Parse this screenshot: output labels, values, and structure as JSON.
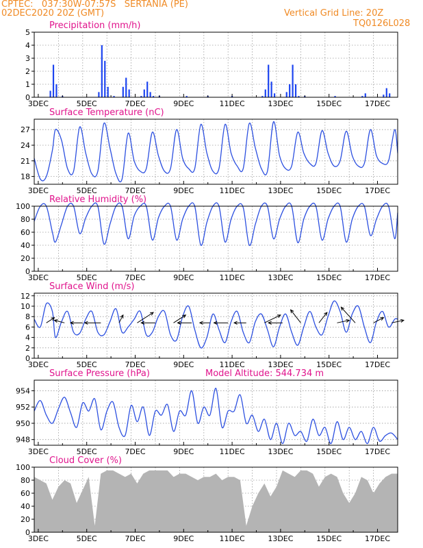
{
  "header": {
    "line1_left": "CPTEC:   037:30W-07:57S   SERTANIA (PE)",
    "line2_left": "02DEC2020 20Z (GMT)",
    "line1_right": "Vertical Grid Line: 20Z",
    "line2_right": "TQ0126L028"
  },
  "colors": {
    "header": "#f08a24",
    "title": "#e0138c",
    "series_line": "#2b4fe0",
    "precip_bar": "#1c44f0",
    "cloud_fill": "#b4b4b4",
    "arrow": "#000000"
  },
  "xaxis": {
    "start": "02DEC2020 20Z",
    "end": "17DEC2020 20Z",
    "tick_labels": [
      "3DEC",
      "5DEC",
      "7DEC",
      "9DEC",
      "11DEC",
      "13DEC",
      "15DEC",
      "17DEC"
    ],
    "tick_days": [
      3,
      5,
      7,
      9,
      11,
      13,
      15,
      17
    ]
  },
  "chart_data": [
    {
      "type": "bar",
      "title": "Precipitation (mm/h)",
      "ylim": [
        0,
        5
      ],
      "yticks": [
        0,
        1,
        2,
        3,
        4,
        5
      ],
      "grid": true,
      "x": [
        "03DEC2020 12Z",
        "03DEC2020 15Z",
        "03DEC2020 18Z",
        "04DEC2020 00Z",
        "05DEC2020 12Z",
        "05DEC2020 15Z",
        "05DEC2020 18Z",
        "05DEC2020 21Z",
        "06DEC2020 03Z",
        "06DEC2020 12Z",
        "06DEC2020 15Z",
        "06DEC2020 18Z",
        "07DEC2020 06Z",
        "07DEC2020 09Z",
        "07DEC2020 12Z",
        "07DEC2020 15Z",
        "07DEC2020 18Z",
        "08DEC2020 00Z",
        "09DEC2020 03Z",
        "10DEC2020 00Z",
        "11DEC2020 00Z",
        "12DEC2020 06Z",
        "12DEC2020 09Z",
        "12DEC2020 12Z",
        "12DEC2020 15Z",
        "12DEC2020 18Z",
        "13DEC2020 06Z",
        "13DEC2020 09Z",
        "13DEC2020 12Z",
        "13DEC2020 15Z",
        "13DEC2020 18Z",
        "14DEC2020 00Z",
        "15DEC2020 06Z",
        "16DEC2020 09Z",
        "16DEC2020 12Z",
        "17DEC2020 06Z",
        "17DEC2020 09Z",
        "17DEC2020 12Z"
      ],
      "values": [
        0.5,
        2.5,
        1.0,
        0.1,
        0.4,
        4.0,
        2.8,
        0.8,
        0.1,
        0.8,
        1.5,
        0.6,
        0.1,
        0.6,
        1.2,
        0.4,
        0.1,
        0.1,
        0.1,
        0.1,
        0.1,
        0.1,
        0.6,
        2.5,
        1.2,
        0.3,
        0.4,
        1.0,
        2.5,
        1.0,
        0.1,
        0.1,
        0.1,
        0.1,
        0.3,
        0.2,
        0.7,
        0.3
      ]
    },
    {
      "type": "line",
      "title": "Surface Temperature (nC)",
      "ylim": [
        16.5,
        29
      ],
      "yticks": [
        18,
        21,
        24,
        27
      ],
      "grid": true,
      "series": [
        {
          "x": [
            "02DEC2020 20Z",
            "03DEC2020 02Z",
            "03DEC2020 08Z",
            "03DEC2020 14Z",
            "03DEC2020 17Z",
            "03DEC2020 23Z",
            "04DEC2020 05Z",
            "04DEC2020 11Z",
            "04DEC2020 17Z",
            "04DEC2020 23Z",
            "05DEC2020 05Z",
            "05DEC2020 11Z",
            "05DEC2020 17Z",
            "05DEC2020 23Z",
            "06DEC2020 05Z",
            "06DEC2020 11Z",
            "06DEC2020 17Z",
            "06DEC2020 23Z",
            "07DEC2020 05Z",
            "07DEC2020 11Z",
            "07DEC2020 17Z",
            "07DEC2020 23Z",
            "08DEC2020 05Z",
            "08DEC2020 11Z",
            "08DEC2020 17Z",
            "08DEC2020 23Z",
            "09DEC2020 05Z",
            "09DEC2020 11Z",
            "09DEC2020 17Z",
            "09DEC2020 23Z",
            "10DEC2020 05Z",
            "10DEC2020 11Z",
            "10DEC2020 17Z",
            "10DEC2020 23Z",
            "11DEC2020 05Z",
            "11DEC2020 11Z",
            "11DEC2020 17Z",
            "11DEC2020 23Z",
            "12DEC2020 05Z",
            "12DEC2020 11Z",
            "12DEC2020 17Z",
            "12DEC2020 23Z",
            "13DEC2020 05Z",
            "13DEC2020 11Z",
            "13DEC2020 17Z",
            "13DEC2020 23Z",
            "14DEC2020 05Z",
            "14DEC2020 11Z",
            "14DEC2020 17Z",
            "14DEC2020 23Z",
            "15DEC2020 05Z",
            "15DEC2020 11Z",
            "15DEC2020 17Z",
            "15DEC2020 23Z",
            "16DEC2020 05Z",
            "16DEC2020 11Z",
            "16DEC2020 17Z",
            "16DEC2020 23Z",
            "17DEC2020 05Z",
            "17DEC2020 11Z",
            "17DEC2020 17Z",
            "17DEC2020 20Z"
          ],
          "values": [
            21.5,
            17.5,
            18.0,
            23.0,
            27.0,
            25.0,
            19.5,
            19.0,
            27.5,
            22.5,
            18.5,
            19.0,
            28.2,
            23.5,
            18.5,
            17.5,
            26.3,
            21.0,
            19.0,
            19.5,
            26.5,
            22.0,
            19.0,
            19.5,
            27.0,
            21.5,
            19.5,
            19.5,
            28.0,
            22.5,
            19.0,
            19.5,
            28.0,
            22.5,
            20.0,
            19.5,
            28.2,
            23.5,
            19.5,
            19.0,
            28.5,
            22.0,
            19.5,
            20.0,
            26.5,
            22.5,
            20.5,
            20.5,
            26.8,
            22.5,
            20.0,
            21.0,
            26.7,
            22.0,
            20.0,
            20.5,
            27.0,
            22.0,
            20.5,
            21.0,
            27.0,
            22.5
          ]
        }
      ]
    },
    {
      "type": "line",
      "title": "Relative Humidity (%)",
      "ylim": [
        0,
        100
      ],
      "yticks": [
        0,
        20,
        40,
        60,
        80,
        100
      ],
      "grid": true,
      "series": [
        {
          "x": [
            "02DEC2020 20Z",
            "03DEC2020 02Z",
            "03DEC2020 08Z",
            "03DEC2020 14Z",
            "03DEC2020 17Z",
            "03DEC2020 23Z",
            "04DEC2020 05Z",
            "04DEC2020 11Z",
            "04DEC2020 17Z",
            "04DEC2020 23Z",
            "05DEC2020 05Z",
            "05DEC2020 11Z",
            "05DEC2020 17Z",
            "05DEC2020 23Z",
            "06DEC2020 05Z",
            "06DEC2020 11Z",
            "06DEC2020 17Z",
            "06DEC2020 23Z",
            "07DEC2020 05Z",
            "07DEC2020 11Z",
            "07DEC2020 17Z",
            "07DEC2020 23Z",
            "08DEC2020 05Z",
            "08DEC2020 11Z",
            "08DEC2020 17Z",
            "08DEC2020 23Z",
            "09DEC2020 05Z",
            "09DEC2020 11Z",
            "09DEC2020 17Z",
            "09DEC2020 23Z",
            "10DEC2020 05Z",
            "10DEC2020 11Z",
            "10DEC2020 17Z",
            "10DEC2020 23Z",
            "11DEC2020 05Z",
            "11DEC2020 11Z",
            "11DEC2020 17Z",
            "11DEC2020 23Z",
            "12DEC2020 05Z",
            "12DEC2020 11Z",
            "12DEC2020 17Z",
            "12DEC2020 23Z",
            "13DEC2020 05Z",
            "13DEC2020 11Z",
            "13DEC2020 17Z",
            "13DEC2020 23Z",
            "14DEC2020 05Z",
            "14DEC2020 11Z",
            "14DEC2020 17Z",
            "14DEC2020 23Z",
            "15DEC2020 05Z",
            "15DEC2020 11Z",
            "15DEC2020 17Z",
            "15DEC2020 23Z",
            "16DEC2020 05Z",
            "16DEC2020 11Z",
            "16DEC2020 17Z",
            "16DEC2020 23Z",
            "17DEC2020 05Z",
            "17DEC2020 11Z",
            "17DEC2020 17Z",
            "17DEC2020 20Z"
          ],
          "values": [
            77,
            100,
            100,
            60,
            45,
            72,
            100,
            100,
            58,
            82,
            100,
            100,
            42,
            72,
            100,
            100,
            50,
            85,
            100,
            100,
            48,
            82,
            100,
            100,
            48,
            80,
            100,
            100,
            40,
            75,
            100,
            100,
            45,
            80,
            100,
            98,
            40,
            72,
            100,
            100,
            50,
            80,
            100,
            100,
            44,
            80,
            100,
            100,
            48,
            80,
            100,
            100,
            45,
            80,
            100,
            100,
            55,
            80,
            100,
            100,
            50,
            90
          ]
        }
      ]
    },
    {
      "type": "line",
      "title": "Surface Wind (m/s)",
      "ylim": [
        0,
        12.5
      ],
      "yticks": [
        0,
        2,
        4,
        6,
        8,
        10,
        12
      ],
      "grid": true,
      "series": [
        {
          "x": [
            "02DEC2020 20Z",
            "03DEC2020 02Z",
            "03DEC2020 08Z",
            "03DEC2020 14Z",
            "03DEC2020 17Z",
            "03DEC2020 23Z",
            "04DEC2020 05Z",
            "04DEC2020 11Z",
            "04DEC2020 17Z",
            "04DEC2020 23Z",
            "05DEC2020 05Z",
            "05DEC2020 11Z",
            "05DEC2020 17Z",
            "05DEC2020 23Z",
            "06DEC2020 05Z",
            "06DEC2020 11Z",
            "06DEC2020 17Z",
            "06DEC2020 23Z",
            "07DEC2020 05Z",
            "07DEC2020 11Z",
            "07DEC2020 17Z",
            "07DEC2020 23Z",
            "08DEC2020 05Z",
            "08DEC2020 11Z",
            "08DEC2020 17Z",
            "08DEC2020 23Z",
            "09DEC2020 05Z",
            "09DEC2020 11Z",
            "09DEC2020 17Z",
            "09DEC2020 23Z",
            "10DEC2020 05Z",
            "10DEC2020 11Z",
            "10DEC2020 17Z",
            "10DEC2020 23Z",
            "11DEC2020 05Z",
            "11DEC2020 11Z",
            "11DEC2020 17Z",
            "11DEC2020 23Z",
            "12DEC2020 05Z",
            "12DEC2020 11Z",
            "12DEC2020 17Z",
            "12DEC2020 23Z",
            "13DEC2020 05Z",
            "13DEC2020 11Z",
            "13DEC2020 17Z",
            "13DEC2020 23Z",
            "14DEC2020 05Z",
            "14DEC2020 11Z",
            "14DEC2020 17Z",
            "14DEC2020 23Z",
            "15DEC2020 05Z",
            "15DEC2020 11Z",
            "15DEC2020 17Z",
            "15DEC2020 23Z",
            "16DEC2020 05Z",
            "16DEC2020 11Z",
            "16DEC2020 17Z",
            "16DEC2020 23Z",
            "17DEC2020 05Z",
            "17DEC2020 11Z",
            "17DEC2020 17Z",
            "17DEC2020 20Z"
          ],
          "values": [
            7.5,
            6.0,
            10.5,
            9.0,
            4.0,
            7.0,
            9.0,
            5.0,
            4.8,
            7.5,
            9.0,
            5.0,
            4.5,
            7.0,
            9.5,
            5.0,
            6.0,
            7.5,
            9.0,
            4.5,
            5.0,
            8.0,
            9.0,
            4.5,
            3.5,
            8.0,
            10.0,
            5.5,
            2.0,
            4.0,
            8.5,
            5.5,
            3.0,
            7.0,
            9.0,
            5.0,
            3.0,
            7.0,
            8.5,
            5.5,
            2.2,
            6.0,
            8.5,
            5.0,
            2.5,
            6.0,
            9.0,
            6.0,
            4.5,
            8.0,
            11.0,
            9.0,
            5.0,
            8.5,
            10.0,
            6.0,
            3.0,
            7.0,
            9.0,
            6.0,
            7.5,
            7.5
          ]
        }
      ],
      "wind_arrows": {
        "x": [
          "03DEC2020 08Z",
          "04DEC2020 02Z",
          "04DEC2020 20Z",
          "05DEC2020 14Z",
          "06DEC2020 08Z",
          "07DEC2020 02Z",
          "07DEC2020 20Z",
          "08DEC2020 14Z",
          "09DEC2020 08Z",
          "10DEC2020 02Z",
          "10DEC2020 20Z",
          "11DEC2020 14Z",
          "12DEC2020 08Z",
          "13DEC2020 02Z",
          "13DEC2020 20Z",
          "14DEC2020 14Z",
          "15DEC2020 08Z",
          "16DEC2020 02Z",
          "16DEC2020 20Z",
          "17DEC2020 14Z"
        ],
        "to_x_hours": [
          8,
          -10,
          -12,
          -16,
          4,
          16,
          -14,
          12,
          -14,
          -10,
          -14,
          -12,
          16,
          -14,
          -10,
          8,
          12,
          -14,
          10,
          12
        ],
        "to_y": [
          1.0,
          0.5,
          0.0,
          0.0,
          1.5,
          2.0,
          0.0,
          1.5,
          0.0,
          0.0,
          0.0,
          0.0,
          1.5,
          0.0,
          2.5,
          2.0,
          0.5,
          3.0,
          1.0,
          0.5
        ]
      }
    },
    {
      "type": "line",
      "title": "Surface Pressure (hPa)",
      "annotation": "Model Altitude: 544.734 m",
      "ylim": [
        947.3,
        955.3
      ],
      "yticks": [
        948,
        950,
        952,
        954
      ],
      "grid": true,
      "series": [
        {
          "x": [
            "02DEC2020 20Z",
            "03DEC2020 02Z",
            "03DEC2020 08Z",
            "03DEC2020 14Z",
            "03DEC2020 20Z",
            "04DEC2020 02Z",
            "04DEC2020 08Z",
            "04DEC2020 14Z",
            "04DEC2020 20Z",
            "05DEC2020 02Z",
            "05DEC2020 08Z",
            "05DEC2020 14Z",
            "05DEC2020 20Z",
            "06DEC2020 02Z",
            "06DEC2020 08Z",
            "06DEC2020 14Z",
            "06DEC2020 20Z",
            "07DEC2020 02Z",
            "07DEC2020 08Z",
            "07DEC2020 14Z",
            "07DEC2020 20Z",
            "08DEC2020 02Z",
            "08DEC2020 08Z",
            "08DEC2020 14Z",
            "08DEC2020 20Z",
            "09DEC2020 02Z",
            "09DEC2020 08Z",
            "09DEC2020 14Z",
            "09DEC2020 20Z",
            "10DEC2020 02Z",
            "10DEC2020 08Z",
            "10DEC2020 14Z",
            "10DEC2020 20Z",
            "11DEC2020 02Z",
            "11DEC2020 08Z",
            "11DEC2020 14Z",
            "11DEC2020 20Z",
            "12DEC2020 02Z",
            "12DEC2020 08Z",
            "12DEC2020 14Z",
            "12DEC2020 20Z",
            "13DEC2020 02Z",
            "13DEC2020 08Z",
            "13DEC2020 14Z",
            "13DEC2020 20Z",
            "14DEC2020 02Z",
            "14DEC2020 08Z",
            "14DEC2020 14Z",
            "14DEC2020 20Z",
            "15DEC2020 02Z",
            "15DEC2020 08Z",
            "15DEC2020 14Z",
            "15DEC2020 20Z",
            "16DEC2020 02Z",
            "16DEC2020 08Z",
            "16DEC2020 14Z",
            "16DEC2020 20Z",
            "17DEC2020 02Z",
            "17DEC2020 08Z",
            "17DEC2020 14Z",
            "17DEC2020 20Z"
          ],
          "values": [
            951.5,
            952.8,
            951.0,
            950.0,
            951.8,
            953.2,
            951.3,
            949.5,
            952.5,
            951.5,
            953.0,
            949.2,
            951.5,
            952.6,
            949.5,
            948.5,
            952.2,
            950.2,
            952.0,
            948.5,
            951.5,
            951.0,
            952.3,
            949.0,
            951.5,
            951.0,
            954.0,
            950.0,
            952.0,
            951.0,
            954.3,
            949.5,
            951.5,
            951.5,
            953.5,
            950.0,
            951.0,
            949.0,
            950.5,
            948.0,
            950.0,
            947.5,
            950.0,
            948.5,
            949.0,
            947.8,
            950.5,
            948.5,
            949.5,
            947.5,
            950.2,
            948.0,
            949.5,
            948.0,
            949.0,
            947.5,
            949.5,
            947.8,
            948.5,
            948.8,
            948.0
          ]
        }
      ]
    },
    {
      "type": "area",
      "title": "Cloud Cover (%)",
      "ylim": [
        0,
        100
      ],
      "yticks": [
        0,
        20,
        40,
        60,
        80,
        100
      ],
      "grid": true,
      "series": [
        {
          "x": [
            "02DEC2020 20Z",
            "03DEC2020 02Z",
            "03DEC2020 08Z",
            "03DEC2020 14Z",
            "03DEC2020 20Z",
            "04DEC2020 02Z",
            "04DEC2020 08Z",
            "04DEC2020 14Z",
            "04DEC2020 20Z",
            "05DEC2020 02Z",
            "05DEC2020 08Z",
            "05DEC2020 14Z",
            "05DEC2020 20Z",
            "06DEC2020 02Z",
            "06DEC2020 08Z",
            "06DEC2020 14Z",
            "06DEC2020 20Z",
            "07DEC2020 02Z",
            "07DEC2020 08Z",
            "07DEC2020 14Z",
            "07DEC2020 20Z",
            "08DEC2020 02Z",
            "08DEC2020 08Z",
            "08DEC2020 14Z",
            "08DEC2020 20Z",
            "09DEC2020 02Z",
            "09DEC2020 08Z",
            "09DEC2020 14Z",
            "09DEC2020 20Z",
            "10DEC2020 02Z",
            "10DEC2020 08Z",
            "10DEC2020 14Z",
            "10DEC2020 20Z",
            "11DEC2020 02Z",
            "11DEC2020 08Z",
            "11DEC2020 14Z",
            "11DEC2020 20Z",
            "12DEC2020 02Z",
            "12DEC2020 08Z",
            "12DEC2020 14Z",
            "12DEC2020 20Z",
            "13DEC2020 02Z",
            "13DEC2020 08Z",
            "13DEC2020 14Z",
            "13DEC2020 20Z",
            "14DEC2020 02Z",
            "14DEC2020 08Z",
            "14DEC2020 14Z",
            "14DEC2020 20Z",
            "15DEC2020 02Z",
            "15DEC2020 08Z",
            "15DEC2020 14Z",
            "15DEC2020 20Z",
            "16DEC2020 02Z",
            "16DEC2020 08Z",
            "16DEC2020 14Z",
            "16DEC2020 20Z",
            "17DEC2020 02Z",
            "17DEC2020 08Z",
            "17DEC2020 14Z",
            "17DEC2020 20Z"
          ],
          "values": [
            85,
            80,
            75,
            50,
            70,
            80,
            75,
            45,
            65,
            85,
            10,
            90,
            95,
            95,
            90,
            85,
            90,
            75,
            90,
            95,
            95,
            95,
            95,
            85,
            90,
            90,
            85,
            80,
            85,
            85,
            90,
            80,
            85,
            85,
            80,
            10,
            40,
            60,
            75,
            55,
            70,
            95,
            90,
            85,
            95,
            95,
            90,
            70,
            85,
            90,
            85,
            60,
            45,
            60,
            85,
            80,
            60,
            75,
            85,
            90,
            90
          ]
        }
      ]
    }
  ]
}
